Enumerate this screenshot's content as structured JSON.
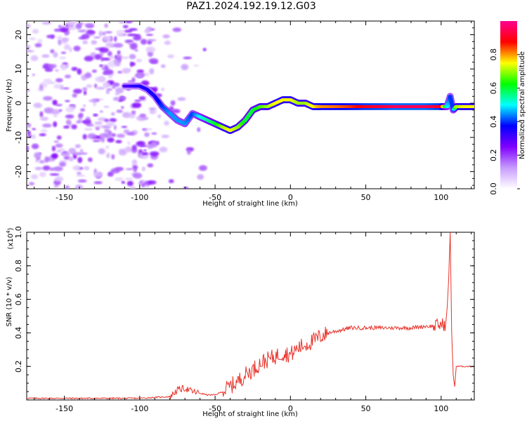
{
  "title": "PAZ1.2024.192.19.12.G03",
  "chart_data": [
    {
      "type": "heatmap",
      "xlabel": "Height of straight line (km)",
      "ylabel": "Frequency (Hz)",
      "xlim": [
        -175,
        122
      ],
      "ylim": [
        -25,
        24
      ],
      "x_ticks": [
        -150,
        -100,
        -50,
        0,
        50,
        100
      ],
      "y_ticks": [
        -20,
        -10,
        0,
        10,
        20
      ],
      "colorbar": {
        "label": "Normalized spectral amplitude",
        "range": [
          0,
          1
        ],
        "ticks": [
          0.0,
          0.2,
          0.4,
          0.6,
          0.8
        ],
        "colors": [
          "#ffffff",
          "#c89bff",
          "#8000ff",
          "#0000ff",
          "#00ffff",
          "#00ff00",
          "#ffff00",
          "#ff0000",
          "#ff0090"
        ]
      },
      "ridge": {
        "x": [
          -110,
          -100,
          -95,
          -90,
          -85,
          -80,
          -75,
          -70,
          -65,
          -60,
          -55,
          -50,
          -45,
          -40,
          -35,
          -30,
          -25,
          -20,
          -15,
          -10,
          -5,
          0,
          5,
          10,
          15,
          20,
          30,
          40,
          50,
          60,
          70,
          80,
          90,
          100,
          104,
          106,
          108,
          110,
          115,
          122
        ],
        "y": [
          5,
          5,
          4,
          2,
          -1,
          -3,
          -5,
          -6,
          -3,
          -4,
          -5,
          -6,
          -7,
          -8,
          -7,
          -5,
          -2,
          -1,
          -1,
          0,
          1,
          1,
          0,
          0,
          -1,
          -1,
          -1,
          -1,
          -1,
          -1,
          -1,
          -1,
          -1,
          -1,
          -1,
          2,
          -2,
          -1,
          -1,
          -1
        ],
        "amplitude": [
          0.3,
          0.35,
          0.35,
          0.35,
          0.4,
          0.45,
          0.45,
          0.45,
          0.4,
          0.5,
          0.55,
          0.6,
          0.7,
          0.75,
          0.7,
          0.6,
          0.6,
          0.65,
          0.7,
          0.75,
          0.75,
          0.75,
          0.7,
          0.7,
          0.75,
          0.8,
          0.82,
          0.85,
          0.9,
          0.92,
          0.95,
          0.95,
          0.95,
          0.9,
          0.5,
          0.4,
          0.4,
          0.7,
          0.75,
          0.75
        ]
      }
    },
    {
      "type": "line",
      "xlabel": "Height of straight line (km)",
      "ylabel": "SNR (10 * v/v)",
      "y_scale_label": "(x10",
      "y_scale_exp": "4",
      "y_scale_close": ")",
      "xlim": [
        -175,
        122
      ],
      "ylim": [
        0,
        1.0
      ],
      "x_ticks": [
        -150,
        -100,
        -50,
        0,
        50,
        100
      ],
      "y_ticks": [
        0.2,
        0.4,
        0.6,
        0.8,
        1.0
      ],
      "series": [
        {
          "color": "#e8332a",
          "x": [
            -175,
            -160,
            -140,
            -120,
            -100,
            -90,
            -80,
            -75,
            -70,
            -65,
            -60,
            -55,
            -50,
            -45,
            -40,
            -35,
            -30,
            -25,
            -20,
            -15,
            -10,
            -5,
            0,
            5,
            10,
            15,
            20,
            25,
            30,
            35,
            40,
            50,
            60,
            70,
            80,
            90,
            95,
            100,
            103,
            104,
            105,
            106,
            107,
            108,
            109,
            110,
            115,
            122
          ],
          "y": [
            0.01,
            0.01,
            0.01,
            0.01,
            0.01,
            0.015,
            0.02,
            0.06,
            0.07,
            0.05,
            0.04,
            0.03,
            0.03,
            0.05,
            0.08,
            0.11,
            0.15,
            0.18,
            0.22,
            0.24,
            0.26,
            0.28,
            0.27,
            0.31,
            0.33,
            0.35,
            0.38,
            0.4,
            0.41,
            0.42,
            0.43,
            0.43,
            0.43,
            0.43,
            0.43,
            0.44,
            0.44,
            0.45,
            0.45,
            0.55,
            0.72,
            1.0,
            0.4,
            0.15,
            0.08,
            0.2,
            0.2,
            0.2
          ]
        }
      ]
    }
  ]
}
